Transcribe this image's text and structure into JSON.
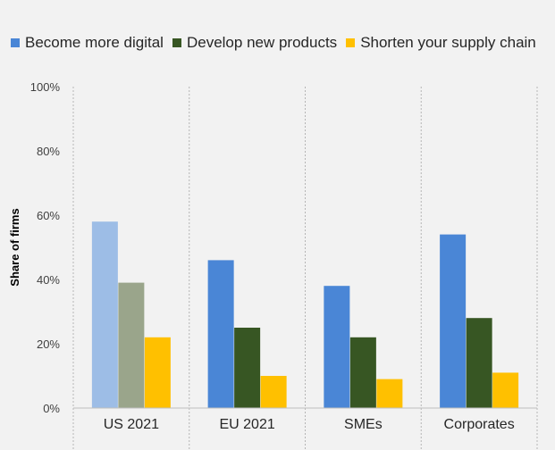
{
  "chart_data": {
    "type": "bar",
    "categories": [
      "US 2021",
      "EU 2021",
      "SMEs",
      "Corporates"
    ],
    "series": [
      {
        "name": "Become more digital",
        "color": "#4a86d6",
        "values": [
          58,
          46,
          38,
          54
        ]
      },
      {
        "name": "Develop new products",
        "color": "#375623",
        "values": [
          39,
          25,
          22,
          28
        ]
      },
      {
        "name": "Shorten your supply chain",
        "color": "#ffc000",
        "values": [
          22,
          10,
          9,
          11
        ]
      }
    ],
    "faded_category_colors": {
      "US 2021": [
        "#9dbde6",
        "#9aa58b",
        "#ffc000"
      ]
    },
    "title": "",
    "xlabel": "",
    "ylabel": "Share of firms",
    "ylim": [
      0,
      100
    ],
    "yticks": [
      "0%",
      "20%",
      "40%",
      "60%",
      "80%",
      "100%"
    ],
    "legend_position": "top",
    "grid": false
  }
}
